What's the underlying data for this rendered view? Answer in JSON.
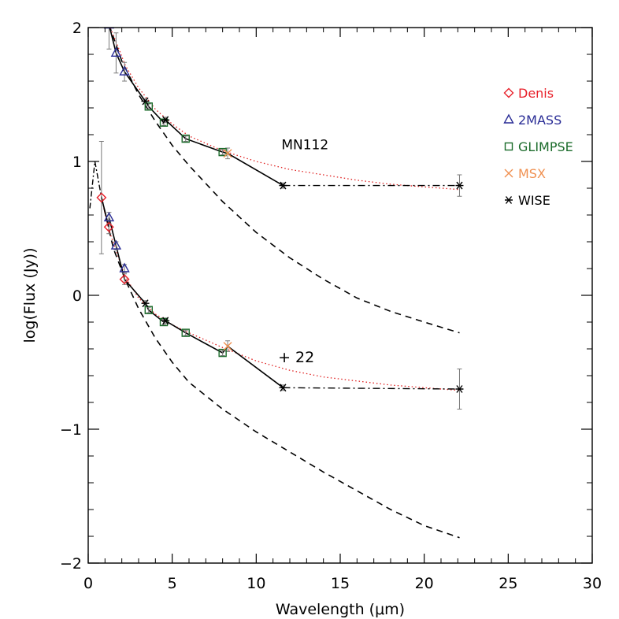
{
  "chart_data": {
    "type": "scatter",
    "title": "",
    "xlabel": "Wavelength (μm)",
    "ylabel": "log(Flux (Jy))",
    "xlim": [
      0,
      30
    ],
    "ylim": [
      -2,
      2
    ],
    "xticks": [
      0,
      5,
      10,
      15,
      20,
      25,
      30
    ],
    "yticks": [
      -2,
      -1,
      0,
      1,
      2
    ],
    "grid": false,
    "legend_placement": "right",
    "annotations": [
      {
        "text": "MN112",
        "x": 11.5,
        "y": 1.09
      },
      {
        "text": "+ 22",
        "x": 11.3,
        "y": -0.5
      }
    ],
    "legend": [
      {
        "label": "Denis",
        "marker": "diamond",
        "color": "#e8202a"
      },
      {
        "label": "2MASS",
        "marker": "triangle",
        "color": "#2a2d96"
      },
      {
        "label": "GLIMPSE",
        "marker": "square",
        "color": "#1a6b2a"
      },
      {
        "label": "MSX",
        "marker": "x",
        "color": "#f09050"
      },
      {
        "label": "WISE",
        "marker": "asterisk",
        "color": "#000000"
      }
    ],
    "series": [
      {
        "name": "MN112",
        "photometry": [
          {
            "survey": "2MASS",
            "points": [
              [
                1.24,
                2.02,
                0.18
              ],
              [
                1.66,
                1.81,
                0.15
              ],
              [
                2.16,
                1.67,
                0.07
              ]
            ]
          },
          {
            "survey": "GLIMPSE",
            "points": [
              [
                3.6,
                1.41,
                0.02
              ],
              [
                4.5,
                1.29,
                0.02
              ],
              [
                5.8,
                1.17,
                0.02
              ],
              [
                8.0,
                1.07,
                0.02
              ]
            ]
          },
          {
            "survey": "MSX",
            "points": [
              [
                8.3,
                1.06,
                0.04
              ]
            ]
          },
          {
            "survey": "WISE",
            "points": [
              [
                3.4,
                1.45,
                0.02
              ],
              [
                4.6,
                1.31,
                0.02
              ],
              [
                11.6,
                0.82,
                0.02
              ],
              [
                22.1,
                0.82,
                0.08
              ]
            ]
          }
        ],
        "solid_line": [
          [
            1.24,
            2.02
          ],
          [
            1.66,
            1.81
          ],
          [
            2.16,
            1.67
          ],
          [
            3.4,
            1.45
          ],
          [
            3.6,
            1.41
          ],
          [
            4.5,
            1.29
          ],
          [
            4.6,
            1.31
          ],
          [
            5.8,
            1.17
          ],
          [
            8.0,
            1.07
          ],
          [
            8.3,
            1.06
          ],
          [
            11.6,
            0.82
          ]
        ],
        "dashdot_line": [
          [
            11.6,
            0.82
          ],
          [
            22.1,
            0.82
          ]
        ],
        "dotted_model": [
          [
            1.24,
            2.02
          ],
          [
            1.7,
            1.88
          ],
          [
            2.2,
            1.72
          ],
          [
            3.0,
            1.55
          ],
          [
            4.0,
            1.39
          ],
          [
            5.0,
            1.28
          ],
          [
            6.0,
            1.19
          ],
          [
            8.0,
            1.08
          ],
          [
            10.0,
            1.0
          ],
          [
            12.0,
            0.94
          ],
          [
            14.0,
            0.9
          ],
          [
            16.0,
            0.86
          ],
          [
            18.0,
            0.83
          ],
          [
            20.0,
            0.81
          ],
          [
            22.1,
            0.79
          ]
        ],
        "dashed_photosphere": [
          [
            1.24,
            2.02
          ],
          [
            2.0,
            1.75
          ],
          [
            3.0,
            1.5
          ],
          [
            4.0,
            1.3
          ],
          [
            5.0,
            1.12
          ],
          [
            6.0,
            0.97
          ],
          [
            8.0,
            0.7
          ],
          [
            10.0,
            0.47
          ],
          [
            12.0,
            0.28
          ],
          [
            14.0,
            0.12
          ],
          [
            16.0,
            -0.02
          ],
          [
            18.0,
            -0.12
          ],
          [
            20.0,
            -0.2
          ],
          [
            22.1,
            -0.28
          ]
        ]
      },
      {
        "name": "+ 22",
        "photometry": [
          {
            "survey": "Denis",
            "points": [
              [
                0.79,
                0.73,
                0.42
              ],
              [
                1.23,
                0.51,
                0.05
              ],
              [
                2.16,
                0.12,
                0.04
              ]
            ]
          },
          {
            "survey": "2MASS",
            "points": [
              [
                1.24,
                0.58,
                0.04
              ],
              [
                1.66,
                0.37,
                0.03
              ],
              [
                2.16,
                0.2,
                0.03
              ]
            ]
          },
          {
            "survey": "GLIMPSE",
            "points": [
              [
                3.6,
                -0.11,
                0.02
              ],
              [
                4.5,
                -0.2,
                0.02
              ],
              [
                5.8,
                -0.28,
                0.02
              ],
              [
                8.0,
                -0.43,
                0.02
              ]
            ]
          },
          {
            "survey": "MSX",
            "points": [
              [
                8.3,
                -0.38,
                0.04
              ]
            ]
          },
          {
            "survey": "WISE",
            "points": [
              [
                3.4,
                -0.06,
                0.02
              ],
              [
                4.6,
                -0.19,
                0.02
              ],
              [
                11.6,
                -0.69,
                0.02
              ],
              [
                22.1,
                -0.7,
                0.15
              ]
            ]
          }
        ],
        "solid_line": [
          [
            0.79,
            0.73
          ],
          [
            1.23,
            0.51
          ],
          [
            1.24,
            0.58
          ],
          [
            1.66,
            0.37
          ],
          [
            2.16,
            0.12
          ],
          [
            3.4,
            -0.06
          ],
          [
            3.6,
            -0.11
          ],
          [
            4.5,
            -0.2
          ],
          [
            4.6,
            -0.19
          ],
          [
            5.8,
            -0.28
          ],
          [
            8.0,
            -0.43
          ],
          [
            8.3,
            -0.38
          ],
          [
            11.6,
            -0.69
          ]
        ],
        "dashdot_line": [
          [
            11.6,
            -0.69
          ],
          [
            22.1,
            -0.7
          ]
        ],
        "dashdot_short": [
          [
            0.1,
            0.65
          ],
          [
            0.4,
            1.0
          ],
          [
            0.79,
            0.73
          ]
        ],
        "dotted_model": [
          [
            0.79,
            0.73
          ],
          [
            1.2,
            0.5
          ],
          [
            1.7,
            0.32
          ],
          [
            2.2,
            0.14
          ],
          [
            3.0,
            -0.02
          ],
          [
            4.0,
            -0.14
          ],
          [
            5.0,
            -0.22
          ],
          [
            6.0,
            -0.28
          ],
          [
            8.0,
            -0.39
          ],
          [
            10.0,
            -0.49
          ],
          [
            12.0,
            -0.56
          ],
          [
            14.0,
            -0.61
          ],
          [
            16.0,
            -0.64
          ],
          [
            18.0,
            -0.67
          ],
          [
            20.0,
            -0.69
          ],
          [
            22.1,
            -0.71
          ]
        ],
        "dashed_photosphere": [
          [
            0.79,
            0.73
          ],
          [
            1.5,
            0.35
          ],
          [
            2.2,
            0.12
          ],
          [
            3.0,
            -0.1
          ],
          [
            4.0,
            -0.32
          ],
          [
            5.0,
            -0.5
          ],
          [
            6.0,
            -0.65
          ],
          [
            8.0,
            -0.85
          ],
          [
            10.0,
            -1.02
          ],
          [
            12.0,
            -1.17
          ],
          [
            14.0,
            -1.32
          ],
          [
            16.0,
            -1.46
          ],
          [
            18.0,
            -1.6
          ],
          [
            20.0,
            -1.72
          ],
          [
            22.1,
            -1.81
          ]
        ]
      }
    ]
  }
}
